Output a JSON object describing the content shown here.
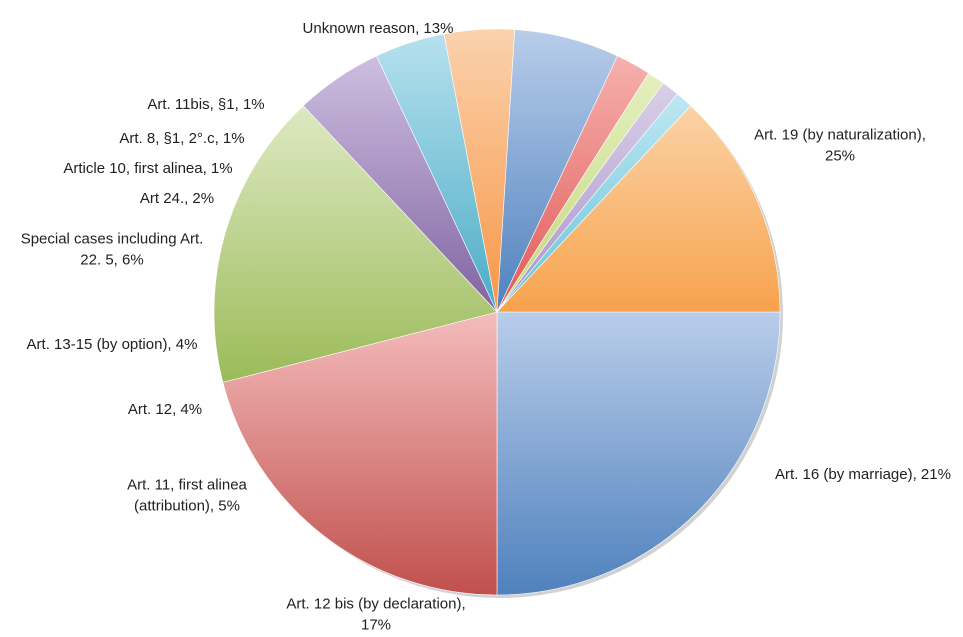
{
  "chart_data": {
    "type": "pie",
    "title": "",
    "start_angle_deg": 0,
    "direction": "clockwise",
    "legend": "none",
    "slices": [
      {
        "label": [
          "Art. 19 (by naturalization),",
          "25%"
        ],
        "value": 25,
        "color": "#4f81bd",
        "highlight": "#b9cdea"
      },
      {
        "label": [
          "Art. 16 (by marriage), 21%"
        ],
        "value": 21,
        "color": "#c0504d",
        "highlight": "#f4bcbc"
      },
      {
        "label": [
          "Art. 12 bis (by declaration),",
          "17%"
        ],
        "value": 17,
        "color": "#9bbb59",
        "highlight": "#dde9c2"
      },
      {
        "label": [
          "Art. 11, first alinea",
          "(attribution), 5%"
        ],
        "value": 5,
        "color": "#8064a2",
        "highlight": "#cdbfe0"
      },
      {
        "label": [
          "Art. 12, 4%"
        ],
        "value": 4,
        "color": "#4bacc6",
        "highlight": "#b6e1ee"
      },
      {
        "label": [
          "Art. 13-15 (by option), 4%"
        ],
        "value": 4,
        "color": "#f79646",
        "highlight": "#fbd2ad"
      },
      {
        "label": [
          "Special cases including Art.",
          "22. 5, 6%"
        ],
        "value": 6,
        "color": "#4f81bd",
        "highlight": "#b9cdea"
      },
      {
        "label": [
          "Art 24., 2%"
        ],
        "value": 2,
        "color": "#e05a55",
        "highlight": "#f6b0ae"
      },
      {
        "label": [
          "Article 10, first alinea, 1%"
        ],
        "value": 1,
        "color": "#c3d97a",
        "highlight": "#e4efbf"
      },
      {
        "label": [
          "Art. 8, §1, 2°.c, 1%"
        ],
        "value": 1,
        "color": "#a994c9",
        "highlight": "#d9cfe8"
      },
      {
        "label": [
          "Art. 11bis, §1, 1%"
        ],
        "value": 1,
        "color": "#63c3dc",
        "highlight": "#bfe7f2"
      },
      {
        "label": [
          "Unknown reason, 13%"
        ],
        "value": 13,
        "color": "#f7a24c",
        "highlight": "#fbd3a7"
      }
    ]
  }
}
